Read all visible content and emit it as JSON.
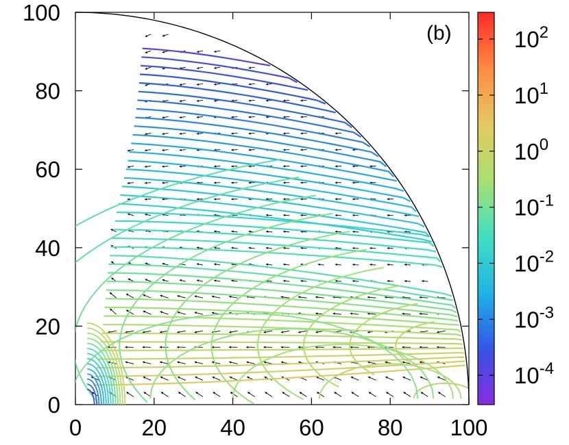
{
  "chart_data": {
    "type": "contour",
    "title": "",
    "panel_label": "(b)",
    "xlabel": "",
    "ylabel": "",
    "xlim": [
      0,
      100
    ],
    "ylim": [
      0,
      100
    ],
    "x_ticks": [
      0,
      20,
      40,
      60,
      80,
      100
    ],
    "y_ticks": [
      0,
      20,
      40,
      60,
      80,
      100
    ],
    "boundary": "quarter circle of radius 100",
    "arrows": "flow direction vector field",
    "colorbar": {
      "scale": "log",
      "range": [
        3e-05,
        300
      ],
      "colormap": "rainbow",
      "ticks": [
        {
          "value": 0.0001,
          "base": "10",
          "exp": "-4"
        },
        {
          "value": 0.001,
          "base": "10",
          "exp": "-3"
        },
        {
          "value": 0.01,
          "base": "10",
          "exp": "-2"
        },
        {
          "value": 0.1,
          "base": "10",
          "exp": "-1"
        },
        {
          "value": 1,
          "base": "10",
          "exp": "0"
        },
        {
          "value": 10,
          "base": "10",
          "exp": "1"
        },
        {
          "value": 100,
          "base": "10",
          "exp": "2"
        }
      ]
    },
    "colors": {
      "stops": [
        "#8a2be2",
        "#3355e6",
        "#1fb4e6",
        "#3fe0c0",
        "#a8e070",
        "#e6c860",
        "#ff8a40",
        "#ff2a2a"
      ]
    }
  }
}
